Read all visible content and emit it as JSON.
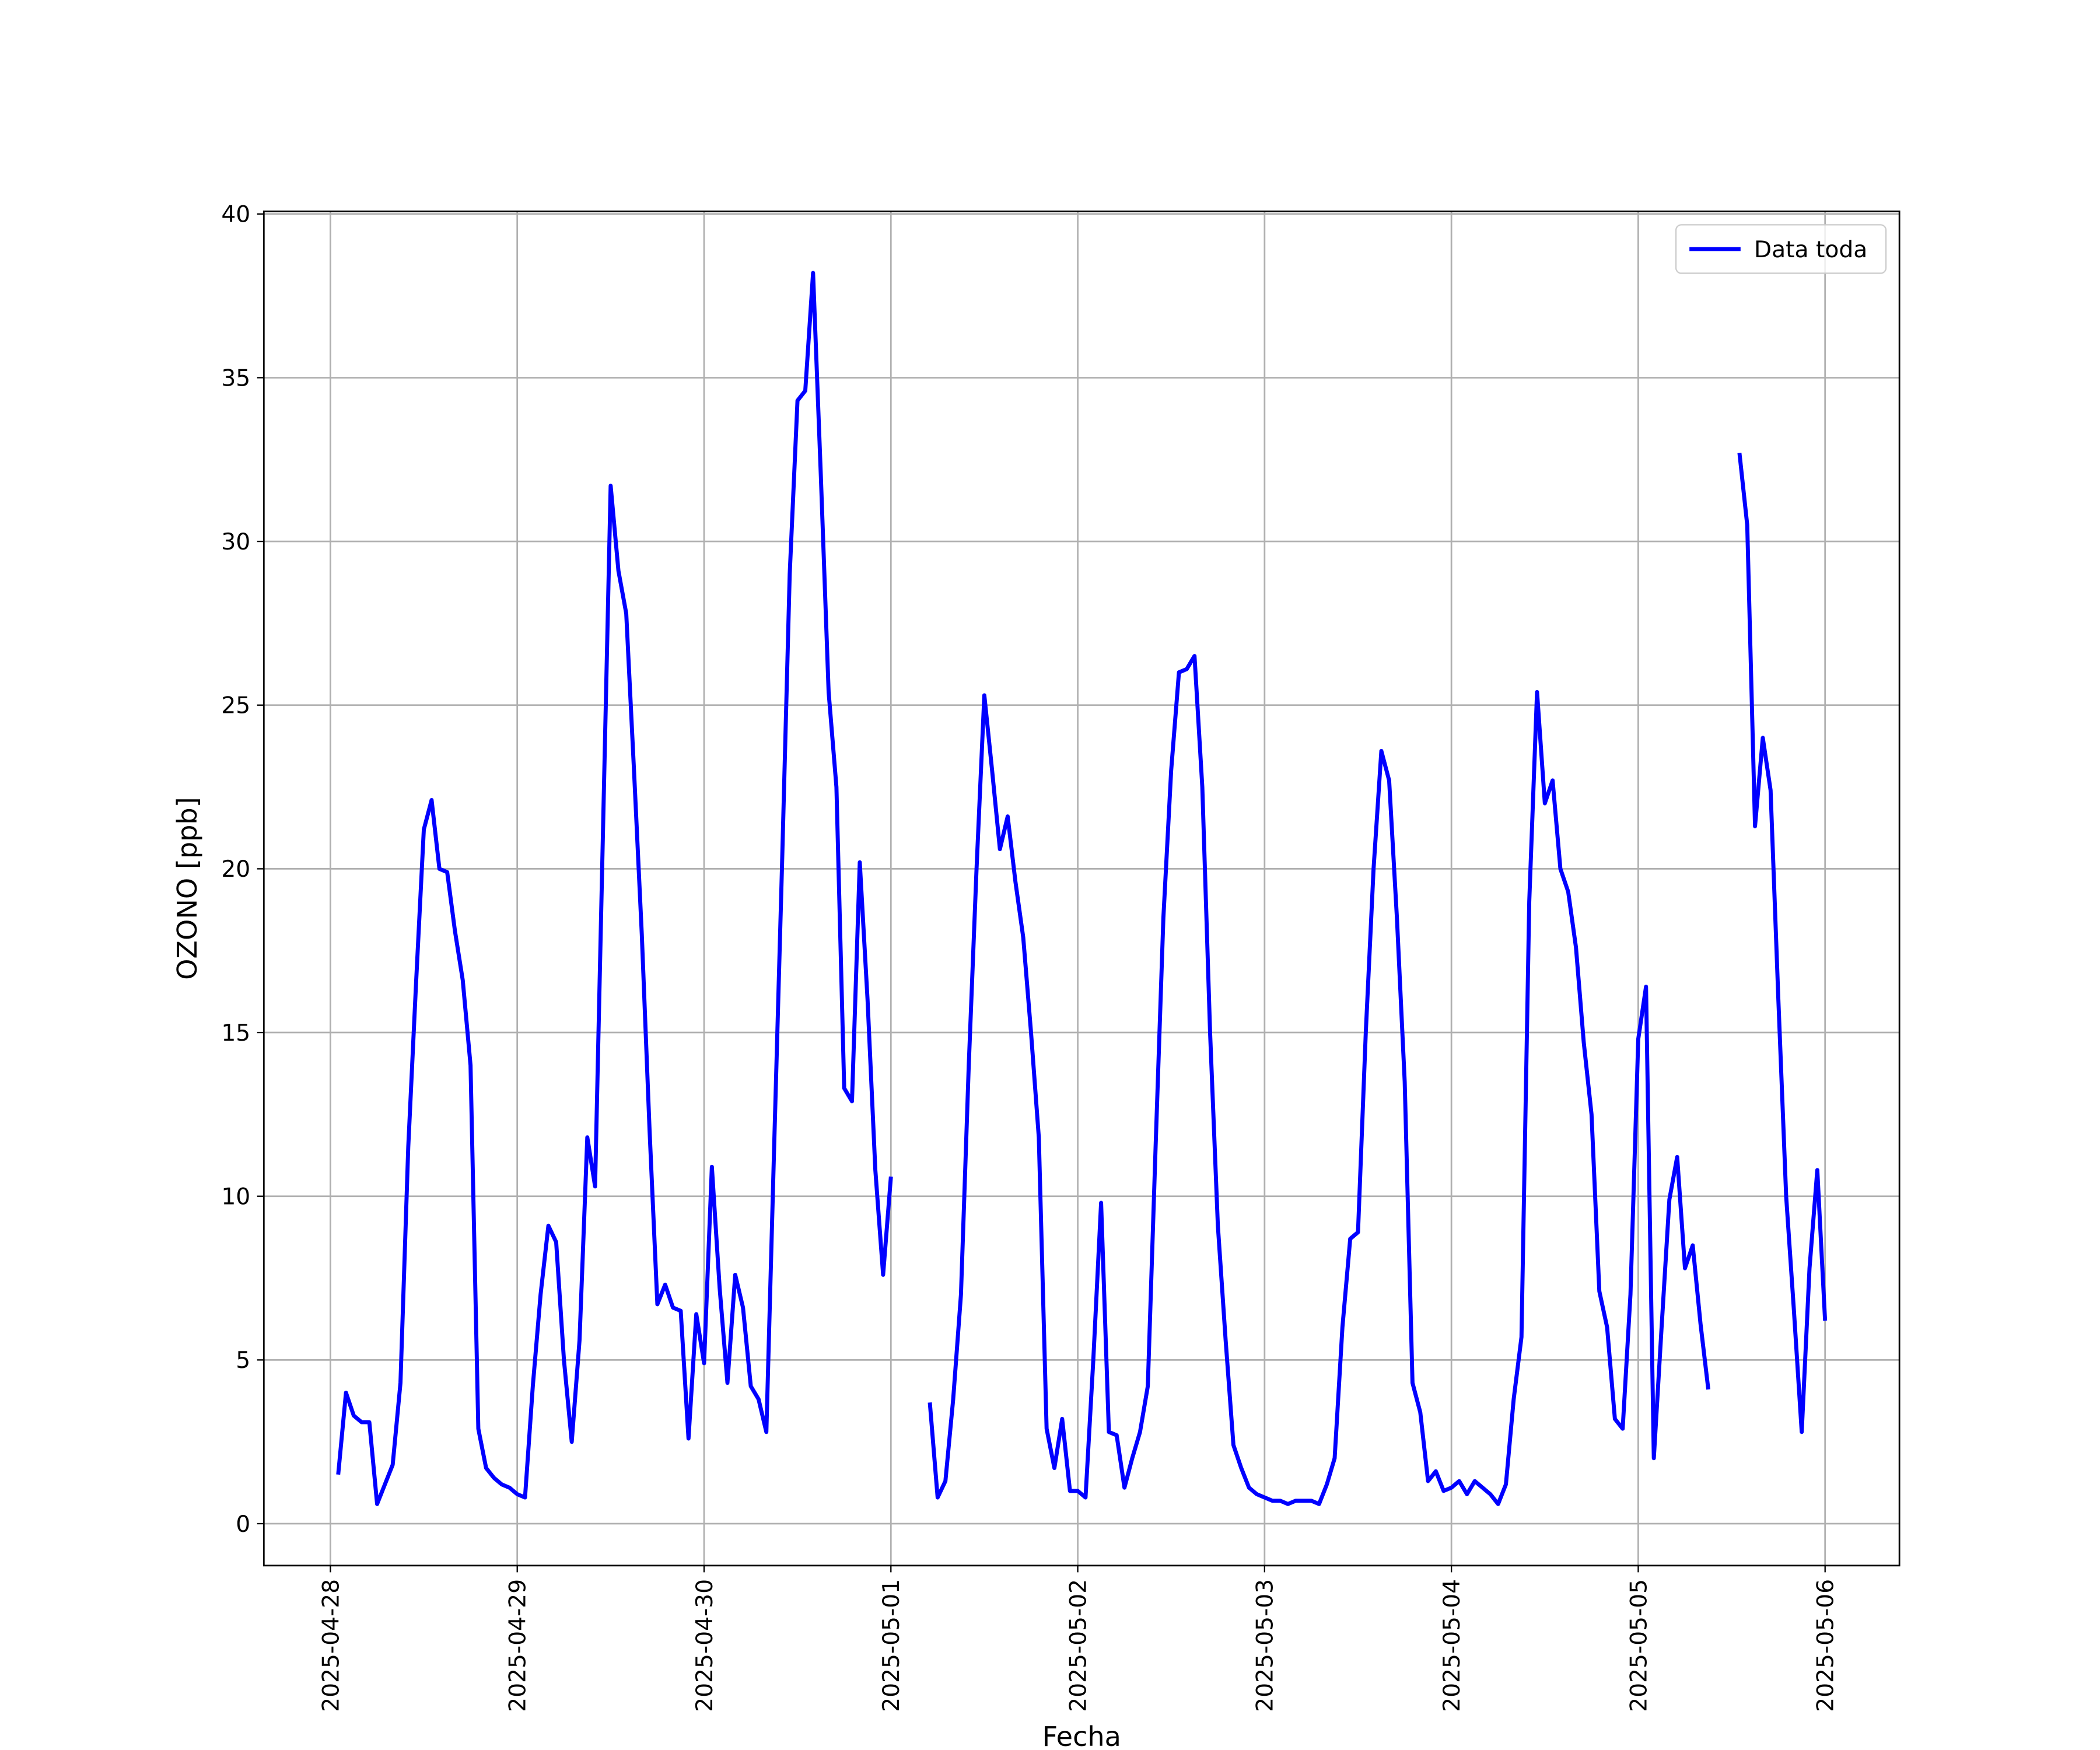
{
  "chart_data": {
    "type": "line",
    "xlabel": "Fecha",
    "ylabel": "OZONO [ppb]",
    "x": [
      1,
      2,
      3,
      4,
      5,
      6,
      7,
      8,
      9,
      10,
      11,
      12,
      13,
      14,
      15,
      16,
      17,
      18,
      19,
      20,
      21,
      22,
      23,
      24,
      25,
      26,
      27,
      28,
      29,
      30,
      31,
      32,
      33,
      34,
      35,
      36,
      37,
      38,
      39,
      40,
      41,
      42,
      43,
      44,
      45,
      46,
      47,
      48,
      49,
      50,
      51,
      52,
      53,
      54,
      55,
      56,
      57,
      58,
      59,
      60,
      61,
      62,
      63,
      64,
      65,
      66,
      67,
      68,
      69,
      70,
      71,
      72,
      73,
      74,
      75,
      76,
      77,
      78,
      79,
      80,
      81,
      82,
      83,
      84,
      85,
      86,
      87,
      88,
      89,
      90,
      91,
      92,
      93,
      94,
      95,
      96,
      97,
      98,
      99,
      100,
      101,
      102,
      103,
      104,
      105,
      106,
      107,
      108,
      109,
      110,
      111,
      112,
      113,
      114,
      115,
      116,
      117,
      118,
      119,
      120,
      121,
      122,
      123,
      124,
      125,
      126,
      127,
      128,
      129,
      130,
      131,
      132,
      133,
      134,
      135,
      136,
      137,
      138,
      139,
      140,
      141,
      142,
      143,
      144,
      145,
      146,
      147,
      148,
      149,
      150,
      151,
      152,
      153,
      154,
      155,
      156,
      157,
      158,
      159,
      160,
      161,
      162,
      163,
      164,
      165,
      166,
      167,
      168,
      169,
      170,
      171,
      172,
      173,
      174,
      175,
      176,
      177,
      178,
      179,
      180,
      181,
      182,
      183,
      184,
      185,
      186,
      187,
      188,
      189,
      190,
      191,
      192
    ],
    "series": [
      {
        "name": "Data toda",
        "color": "#0000ff",
        "values": [
          1.5,
          4.0,
          3.3,
          3.1,
          3.1,
          0.6,
          1.2,
          1.8,
          4.3,
          11.5,
          16.5,
          21.2,
          22.1,
          20.0,
          19.9,
          18.1,
          16.6,
          14.0,
          2.9,
          1.7,
          1.4,
          1.2,
          1.1,
          0.9,
          0.8,
          4.2,
          7.0,
          9.1,
          8.6,
          5.0,
          2.5,
          5.6,
          11.8,
          10.3,
          21.0,
          31.7,
          29.1,
          27.8,
          23.0,
          18.0,
          12.0,
          6.7,
          7.3,
          6.6,
          6.5,
          2.6,
          6.4,
          4.9,
          10.9,
          7.2,
          4.3,
          7.6,
          6.6,
          4.2,
          3.8,
          2.8,
          11.5,
          20.0,
          29.0,
          34.3,
          34.6,
          38.2,
          32.0,
          25.4,
          22.5,
          13.3,
          12.9,
          20.2,
          16.0,
          10.8,
          7.6,
          10.6,
          null,
          null,
          null,
          null,
          3.7,
          0.8,
          1.3,
          3.8,
          7.0,
          14.0,
          20.0,
          25.3,
          23.0,
          20.6,
          21.6,
          19.6,
          17.9,
          15.0,
          11.8,
          2.9,
          1.7,
          3.2,
          1.0,
          1.0,
          0.8,
          5.0,
          9.8,
          2.8,
          2.7,
          1.1,
          2.0,
          2.8,
          4.2,
          11.5,
          18.5,
          23.0,
          26.0,
          26.1,
          26.5,
          22.5,
          15.0,
          9.1,
          5.6,
          2.4,
          1.7,
          1.1,
          0.9,
          0.8,
          0.7,
          0.7,
          0.6,
          0.7,
          0.7,
          0.7,
          0.6,
          1.2,
          2.0,
          6.0,
          8.7,
          8.9,
          15.0,
          20.0,
          23.6,
          22.7,
          18.5,
          13.5,
          4.3,
          3.4,
          1.3,
          1.6,
          1.0,
          1.1,
          1.3,
          0.9,
          1.3,
          1.1,
          0.9,
          0.6,
          1.2,
          3.8,
          5.7,
          19.0,
          25.4,
          22.0,
          22.7,
          20.0,
          19.3,
          17.6,
          14.7,
          12.5,
          7.1,
          6.0,
          3.2,
          2.9,
          7.0,
          14.8,
          16.4,
          2.0,
          6.0,
          9.9,
          11.2,
          7.8,
          8.5,
          6.1,
          4.1,
          null,
          null,
          null,
          32.7,
          30.5,
          21.3,
          24.0,
          22.4,
          16.0,
          10.0,
          6.5,
          2.8,
          7.8,
          10.8,
          6.2
        ]
      }
    ],
    "xlim": [
      -8.55,
      201.55
    ],
    "xticks": [
      {
        "value": 0,
        "label": "2025-04-28"
      },
      {
        "value": 24,
        "label": "2025-04-29"
      },
      {
        "value": 48,
        "label": "2025-04-30"
      },
      {
        "value": 72,
        "label": "2025-05-01"
      },
      {
        "value": 96,
        "label": "2025-05-02"
      },
      {
        "value": 120,
        "label": "2025-05-03"
      },
      {
        "value": 144,
        "label": "2025-05-04"
      },
      {
        "value": 168,
        "label": "2025-05-05"
      },
      {
        "value": 192,
        "label": "2025-05-06"
      }
    ],
    "ylim": [
      -1.28,
      40.08
    ],
    "yticks": [
      0,
      5,
      10,
      15,
      20,
      25,
      30,
      35,
      40
    ],
    "grid": true,
    "legend": "upper right"
  }
}
